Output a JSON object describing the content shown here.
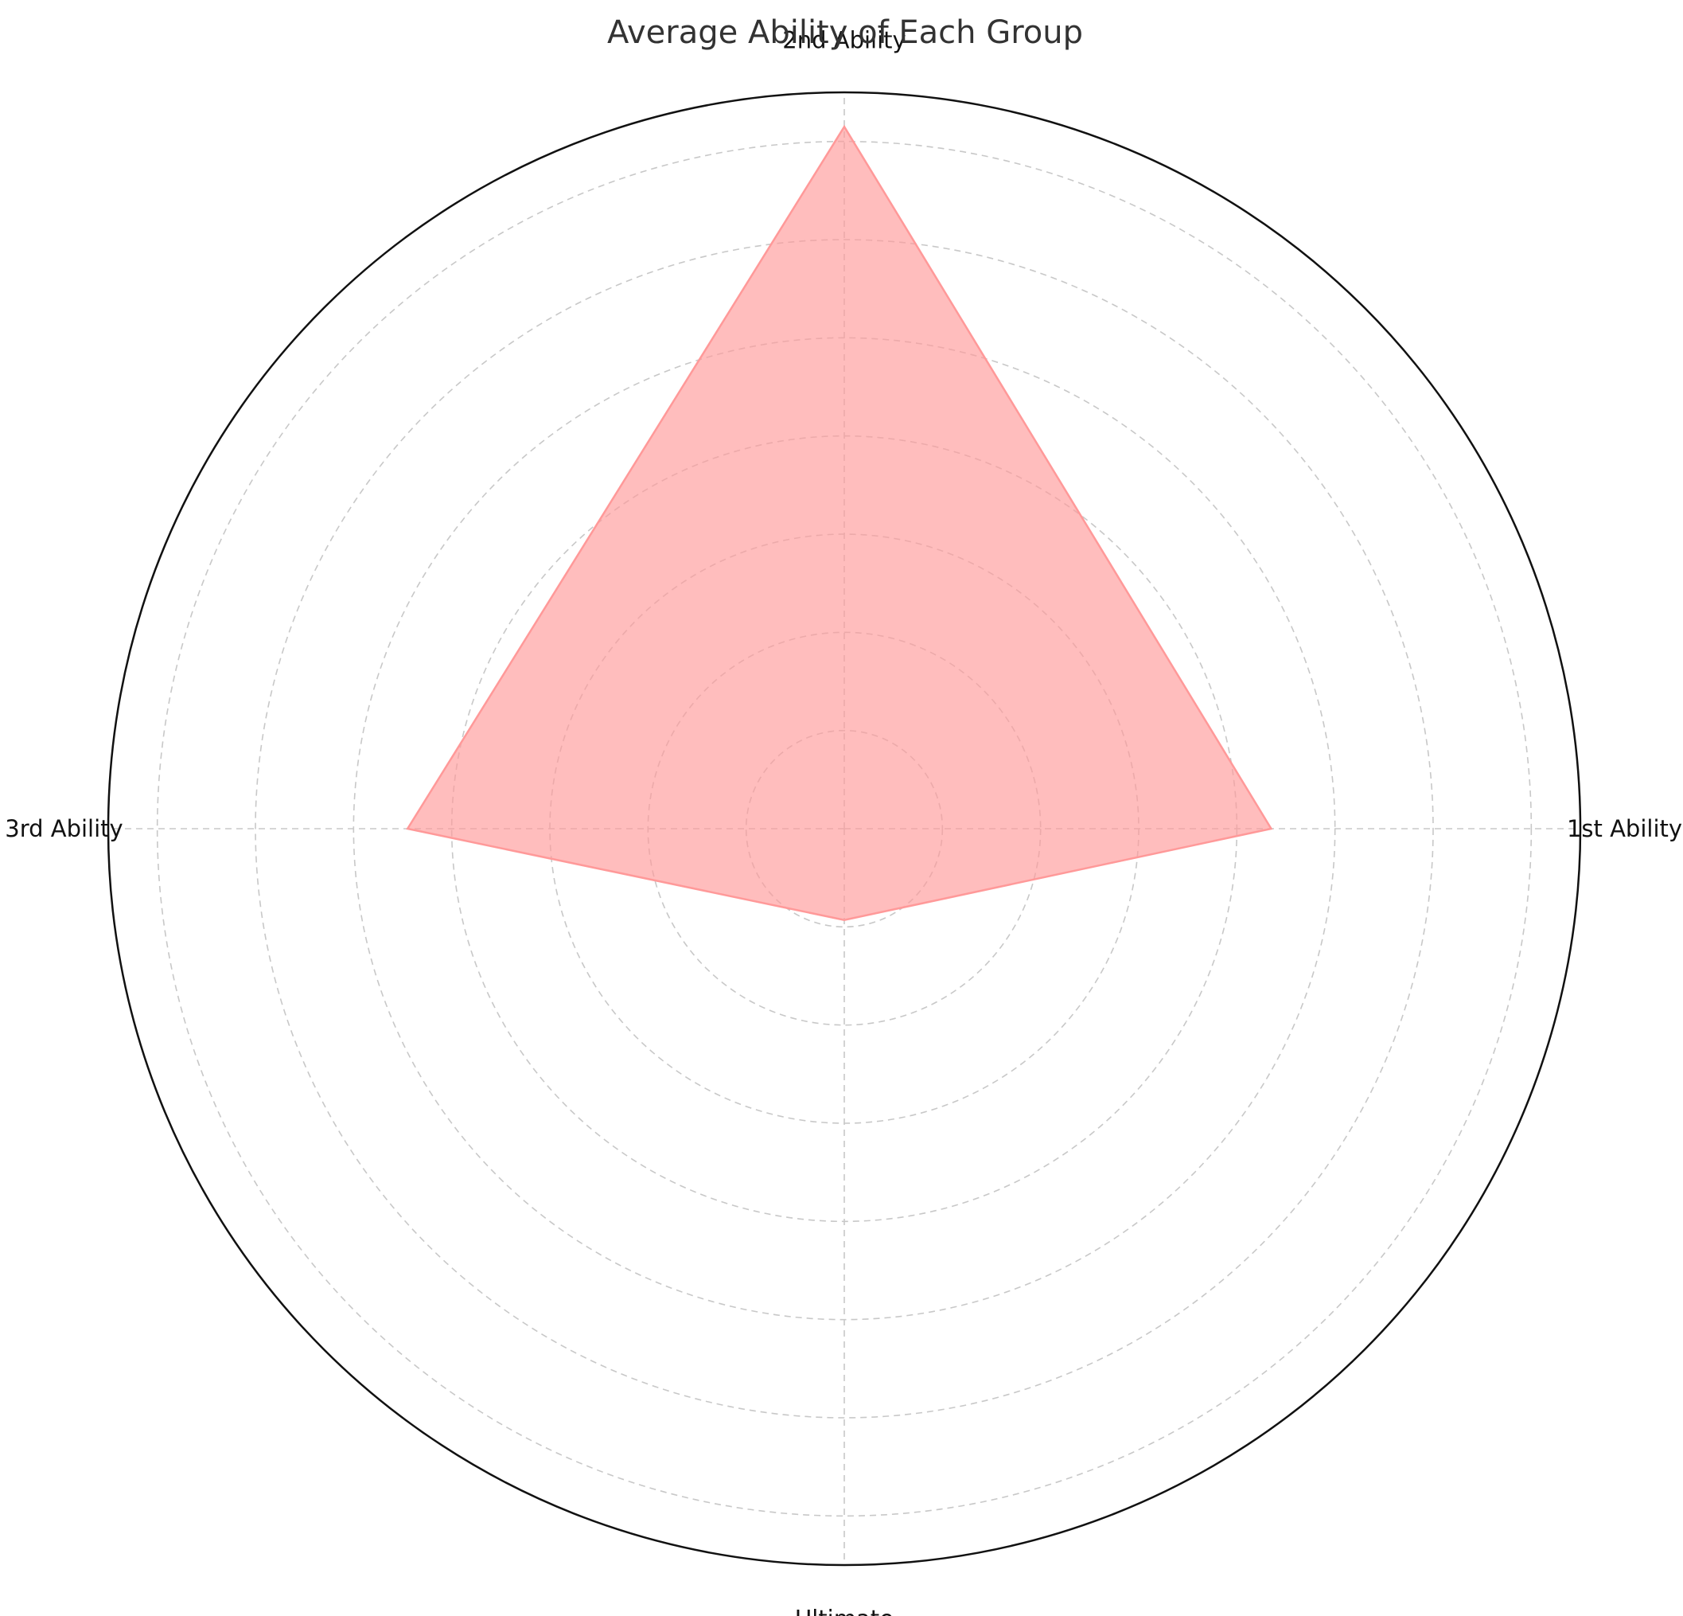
{
  "chart_data": {
    "type": "radar",
    "title": "Average Ability of Each Group",
    "categories": [
      "1st Ability",
      "2nd Ability",
      "3rd Ability",
      "Ultimate"
    ],
    "series": [
      {
        "values": [
          4.35,
          7.15,
          4.45,
          0.93
        ]
      }
    ],
    "rlim": [
      0,
      7.5
    ],
    "ring_step": 1,
    "grid": true,
    "colors": {
      "fill": "#ff9999",
      "fill_opacity": 0.65,
      "edge": "#ff9999"
    }
  }
}
